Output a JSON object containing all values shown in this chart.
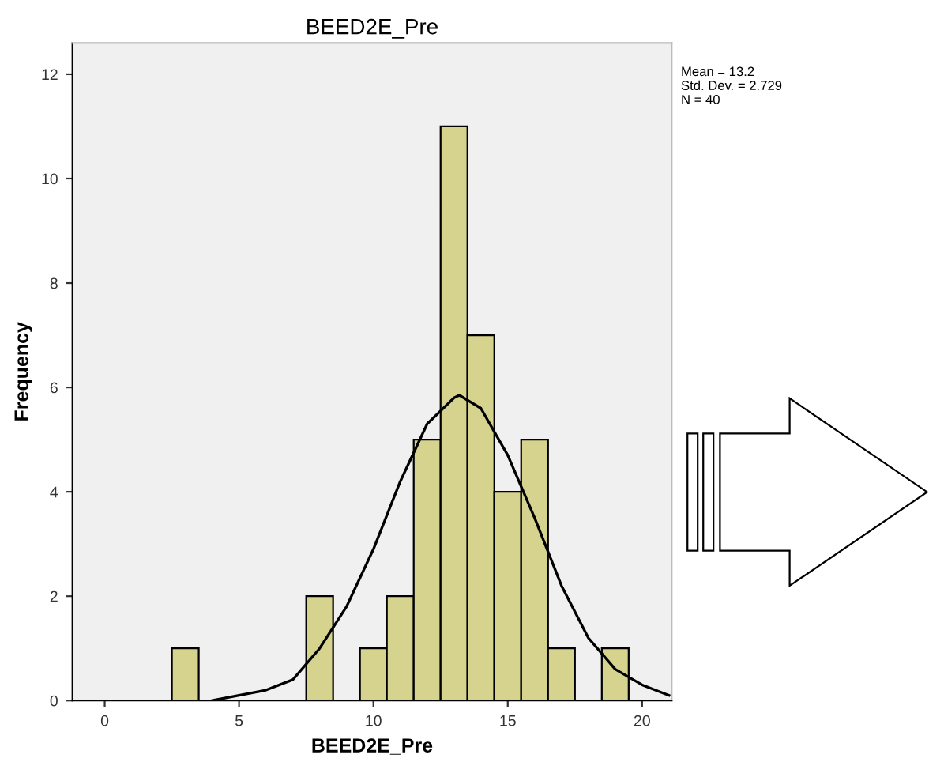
{
  "chart_data": {
    "type": "histogram",
    "title": "BEED2E_Pre",
    "xlabel": "BEED2E_Pre",
    "ylabel": "Frequency",
    "bins": [
      2.5,
      3.5,
      4.5,
      5.5,
      6.5,
      7.5,
      8.5,
      9.5,
      10.5,
      11.5,
      12.5,
      13.5,
      14.5,
      15.5,
      16.5,
      17.5,
      18.5,
      19.5
    ],
    "values": [
      1,
      0,
      0,
      0,
      0,
      2,
      0,
      1,
      2,
      5,
      11,
      7,
      4,
      5,
      1,
      0,
      1
    ],
    "color": "#d6d38f",
    "series": [
      {
        "type": "line",
        "color": "#000000",
        "x": [
          4,
          5,
          6,
          7,
          8,
          9,
          10,
          11,
          12,
          13,
          13.2,
          14,
          15,
          16,
          17,
          18,
          19,
          20,
          21
        ],
        "values": [
          0.0,
          0.1,
          0.2,
          0.4,
          1.0,
          1.8,
          2.9,
          4.2,
          5.3,
          5.8,
          5.85,
          5.6,
          4.7,
          3.5,
          2.2,
          1.2,
          0.6,
          0.3,
          0.1
        ]
      }
    ],
    "xlim": [
      -1.2,
      21.1
    ],
    "xticks": [
      0,
      5,
      10,
      15,
      20
    ],
    "ylim": [
      0,
      12.6
    ],
    "yticks": [
      0,
      2,
      4,
      6,
      8,
      10,
      12
    ],
    "grid": false,
    "legend": false,
    "annotations": [
      "Mean = 13.2",
      "Std. Dev. = 2.729",
      "N = 40"
    ]
  }
}
